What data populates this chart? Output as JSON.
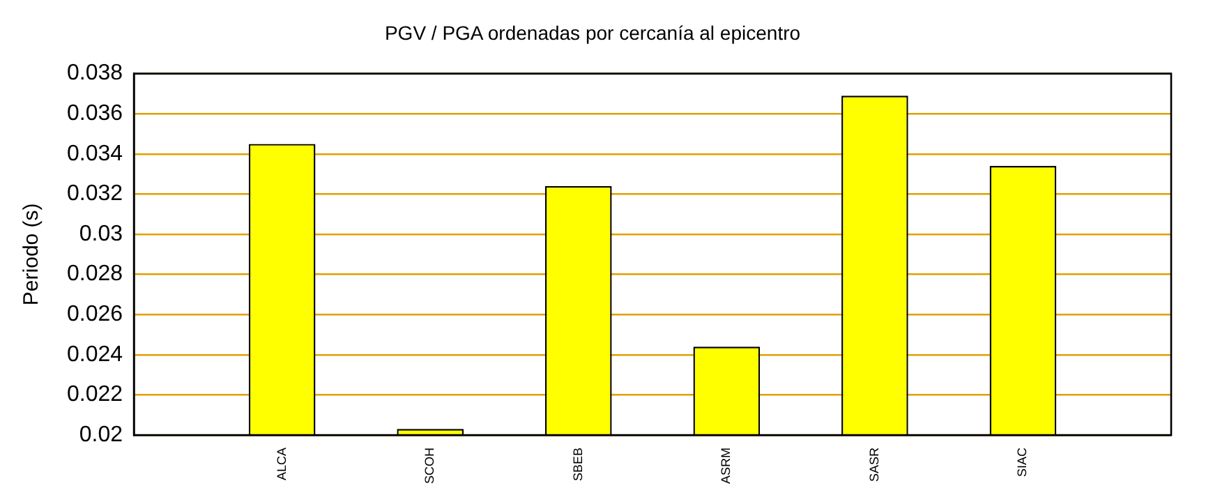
{
  "chart_data": {
    "type": "bar",
    "title": "PGV / PGA ordenadas por cercanía al epicentro",
    "ylabel": "Periodo (s)",
    "categories": [
      "ALCA",
      "SCOH",
      "SBEB",
      "ASRM",
      "SASR",
      "SIAC"
    ],
    "values": [
      0.0345,
      0.0203,
      0.0324,
      0.0244,
      0.0369,
      0.0334
    ],
    "color": "#ffff00",
    "ylim": [
      0.02,
      0.038
    ],
    "yticks": [
      0.02,
      0.022,
      0.024,
      0.026,
      0.028,
      0.03,
      0.032,
      0.034,
      0.036,
      0.038
    ],
    "grid": "y"
  }
}
